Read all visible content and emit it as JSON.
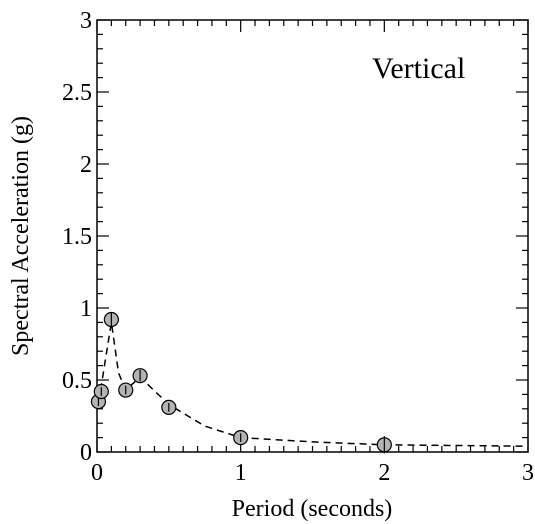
{
  "chart_data": {
    "type": "scatter",
    "title": "",
    "annotation": "Vertical",
    "xlabel": "Period (seconds)",
    "ylabel": "Spectral Acceleration (g)",
    "xlim": [
      0,
      3
    ],
    "ylim": [
      0,
      3
    ],
    "x_ticks": [
      "0",
      "1",
      "2",
      "3"
    ],
    "y_ticks": [
      "0",
      "0.5",
      "1",
      "1.5",
      "2",
      "2.5",
      "3"
    ],
    "grid": false,
    "legend": "none",
    "series": [
      {
        "style": "circle markers with error bars",
        "points": [
          {
            "x": 0.01,
            "y": 0.35,
            "err": 0.03
          },
          {
            "x": 0.03,
            "y": 0.42,
            "err": 0.03
          },
          {
            "x": 0.1,
            "y": 0.92,
            "err": 0.05
          },
          {
            "x": 0.2,
            "y": 0.43,
            "err": 0.03
          },
          {
            "x": 0.3,
            "y": 0.53,
            "err": 0.04
          },
          {
            "x": 0.5,
            "y": 0.31,
            "err": 0.03
          },
          {
            "x": 1.0,
            "y": 0.1,
            "err": 0.03
          },
          {
            "x": 2.0,
            "y": 0.05,
            "err": 0.06
          }
        ]
      },
      {
        "style": "dashed line",
        "points": [
          {
            "x": 0.0,
            "y": 0.35
          },
          {
            "x": 0.03,
            "y": 0.46
          },
          {
            "x": 0.06,
            "y": 0.65
          },
          {
            "x": 0.1,
            "y": 0.9
          },
          {
            "x": 0.15,
            "y": 0.55
          },
          {
            "x": 0.2,
            "y": 0.43
          },
          {
            "x": 0.3,
            "y": 0.52
          },
          {
            "x": 0.5,
            "y": 0.33
          },
          {
            "x": 0.75,
            "y": 0.18
          },
          {
            "x": 1.0,
            "y": 0.1
          },
          {
            "x": 1.5,
            "y": 0.07
          },
          {
            "x": 2.0,
            "y": 0.05
          },
          {
            "x": 3.0,
            "y": 0.04
          }
        ]
      }
    ],
    "colors": {
      "marker_fill": "#b3b3b3",
      "stroke": "#000000"
    }
  }
}
